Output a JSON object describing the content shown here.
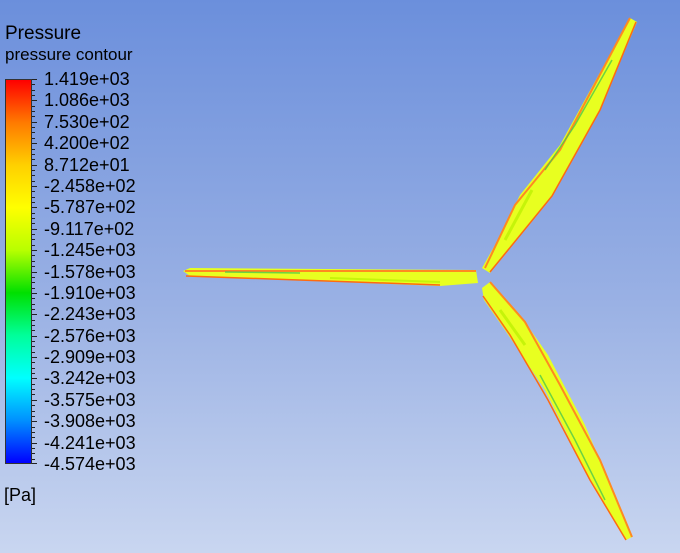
{
  "legend": {
    "title": "Pressure",
    "subtitle": "pressure contour",
    "unit": "[Pa]",
    "labels": [
      "1.419e+03",
      "1.086e+03",
      "7.530e+02",
      "4.200e+02",
      "8.712e+01",
      "-2.458e+02",
      "-5.787e+02",
      "-9.117e+02",
      "-1.245e+03",
      "-1.578e+03",
      "-1.910e+03",
      "-2.243e+03",
      "-2.576e+03",
      "-2.909e+03",
      "-3.242e+03",
      "-3.575e+03",
      "-3.908e+03",
      "-4.241e+03",
      "-4.574e+03"
    ],
    "colormap_stops": [
      "#ff0000",
      "#ff7a00",
      "#ffd000",
      "#ffff00",
      "#b8ff00",
      "#00e000",
      "#00ff9a",
      "#00ffff",
      "#0090ff",
      "#0000ff"
    ]
  },
  "colors": {
    "background_top": "#6b8fdc",
    "background_bottom": "#c9d6f0",
    "blade_main": "#e8ff20",
    "blade_edge": "#ff7a1a",
    "blade_low": "#4ec84a"
  }
}
